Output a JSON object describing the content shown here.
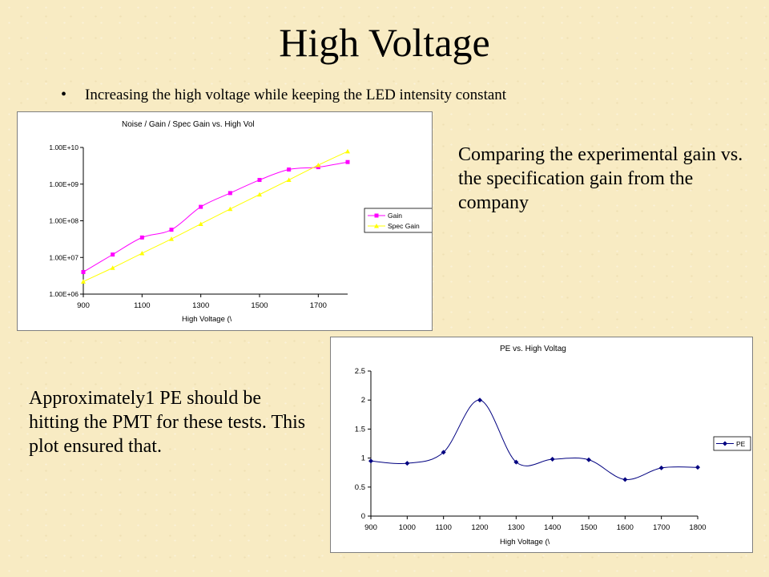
{
  "slide": {
    "title": "High Voltage",
    "bullet": "Increasing the high voltage while keeping the LED intensity constant",
    "note_top": "Comparing the experimental gain vs. the specification gain from the company",
    "note_bottom": "Approximately1 PE should be hitting the PMT for these tests. This plot ensured that."
  },
  "chart_data": [
    {
      "type": "line",
      "title": "Noise / Gain / Spec Gain vs. High Vol",
      "xlabel": "High Voltage (\\",
      "ylabel": "",
      "y_scale": "log",
      "ylim": [
        1000000,
        10000000000
      ],
      "xlim": [
        900,
        1800
      ],
      "x_ticks": [
        900,
        1100,
        1300,
        1500,
        1700
      ],
      "y_ticks": [
        "1.00E+06",
        "1.00E+07",
        "1.00E+08",
        "1.00E+09",
        "1.00E+10"
      ],
      "grid": false,
      "legend": "right",
      "x": [
        900,
        1000,
        1100,
        1200,
        1300,
        1400,
        1500,
        1600,
        1700,
        1800
      ],
      "series": [
        {
          "name": "Gain",
          "color": "#ff00ff",
          "marker": "square",
          "values": [
            4000000,
            12000000,
            35000000,
            57000000,
            240000000,
            570000000,
            1300000000,
            2500000000,
            2900000000,
            4000000000
          ]
        },
        {
          "name": "Spec Gain",
          "color": "#ffff00",
          "marker": "triangle",
          "values": [
            2200000,
            5200000,
            13000000,
            32000000,
            82000000,
            210000000,
            520000000,
            1300000000,
            3300000000,
            7800000000
          ]
        }
      ]
    },
    {
      "type": "line",
      "title": "PE vs. High Voltag",
      "xlabel": "High Voltage (\\",
      "ylabel": "",
      "ylim": [
        0,
        2.5
      ],
      "xlim": [
        900,
        1800
      ],
      "x_ticks": [
        900,
        1000,
        1100,
        1200,
        1300,
        1400,
        1500,
        1600,
        1700,
        1800
      ],
      "y_ticks": [
        "0",
        "0.5",
        "1",
        "1.5",
        "2",
        "2.5"
      ],
      "grid": false,
      "legend": "right",
      "x": [
        900,
        1000,
        1100,
        1200,
        1300,
        1400,
        1500,
        1600,
        1700,
        1800
      ],
      "series": [
        {
          "name": "PE",
          "color": "#000080",
          "marker": "diamond",
          "values": [
            0.95,
            0.91,
            1.1,
            2.0,
            0.93,
            0.98,
            0.97,
            0.63,
            0.83,
            0.84
          ]
        }
      ]
    }
  ]
}
